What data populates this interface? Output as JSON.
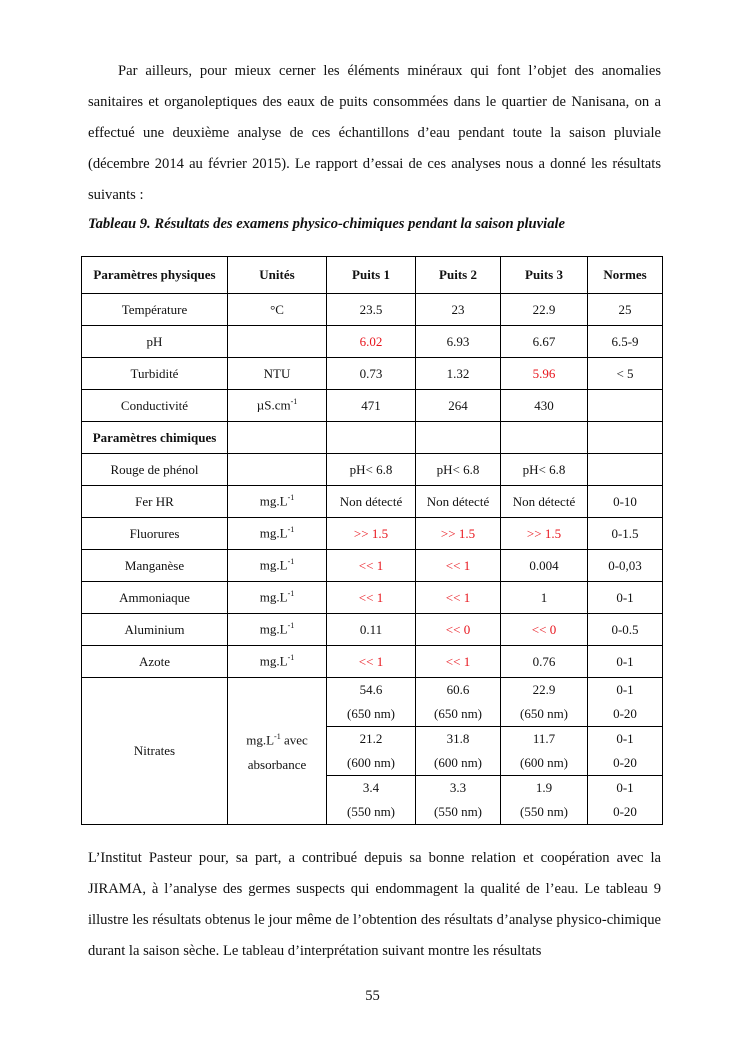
{
  "paragraph1": "Par ailleurs, pour mieux cerner les éléments minéraux qui font l’objet des anomalies sanitaires et organoleptiques des eaux de puits consommées dans le quartier de Nanisana, on a effectué une deuxième analyse de ces échantillons d’eau pendant toute la saison pluviale (décembre 2014 au février 2015). Le rapport d’essai de ces analyses nous a donné les résultats suivants :",
  "caption": "Tableau 9. Résultats des examens physico-chimiques pendant la saison pluviale",
  "highlight_color": "#e8141c",
  "table": {
    "headers": [
      "Paramètres physiques",
      "Unités",
      "Puits 1",
      "Puits 2",
      "Puits 3",
      "Normes"
    ],
    "rows": [
      {
        "cells": [
          "Température",
          "°C",
          "23.5",
          "23",
          "22.9",
          "25"
        ],
        "red": []
      },
      {
        "cells": [
          "pH",
          "",
          "6.02",
          "6.93",
          "6.67",
          "6.5-9"
        ],
        "red": [
          2
        ]
      },
      {
        "cells": [
          "Turbidité",
          "NTU",
          "0.73",
          "1.32",
          "5.96",
          "< 5"
        ],
        "red": [
          4
        ]
      },
      {
        "cells": [
          "Conductivité",
          "µS.cm|-1",
          "471",
          "264",
          "430",
          ""
        ],
        "red": []
      },
      {
        "cells": [
          "Paramètres chimiques",
          "",
          "",
          "",
          "",
          ""
        ],
        "red": [],
        "bold": true
      },
      {
        "cells": [
          "Rouge de phénol",
          "",
          "pH< 6.8",
          "pH< 6.8",
          "pH< 6.8",
          ""
        ],
        "red": []
      },
      {
        "cells": [
          "Fer HR",
          "mg.L|-1",
          "Non détecté",
          "Non détecté",
          "Non détecté",
          "0-10"
        ],
        "red": []
      },
      {
        "cells": [
          "Fluorures",
          "mg.L|-1",
          ">> 1.5",
          ">> 1.5",
          ">> 1.5",
          "0-1.5"
        ],
        "red": [
          2,
          3,
          4
        ]
      },
      {
        "cells": [
          "Manganèse",
          "mg.L|-1",
          "<< 1",
          "<< 1",
          "0.004",
          "0-0,03"
        ],
        "red": [
          2,
          3
        ]
      },
      {
        "cells": [
          "Ammoniaque",
          "mg.L|-1",
          "<< 1",
          "<< 1",
          "1",
          "0-1"
        ],
        "red": [
          2,
          3
        ]
      },
      {
        "cells": [
          "Aluminium",
          "mg.L|-1",
          "0.11",
          "<< 0",
          "<< 0",
          "0-0.5"
        ],
        "red": [
          3,
          4
        ]
      },
      {
        "cells": [
          "Azote",
          "mg.L|-1",
          "<< 1",
          "<< 1",
          "0.76",
          "0-1"
        ],
        "red": [
          2,
          3
        ]
      }
    ],
    "nitrates": {
      "label": "Nitrates",
      "unit": "mg.L|-1| avec absorbance",
      "rows": [
        [
          "54.6 (650 nm)",
          "60.6 (650 nm)",
          "22.9 (650 nm)",
          "0-1 0-20"
        ],
        [
          "21.2 (600 nm)",
          "31.8 (600 nm)",
          "11.7 (600 nm)",
          "0-1 0-20"
        ],
        [
          "3.4 (550 nm)",
          "3.3 (550 nm)",
          "1.9 (550 nm)",
          "0-1 0-20"
        ]
      ]
    }
  },
  "paragraph2": "L’Institut Pasteur pour, sa part, a contribué depuis sa bonne relation et coopération avec la JIRAMA, à l’analyse des germes suspects qui endommagent la qualité de l’eau. Le tableau 9 illustre les résultats obtenus le jour même de l’obtention des résultats d’analyse physico-chimique durant la saison sèche. Le tableau d’interprétation suivant montre les résultats",
  "page_number": "55"
}
